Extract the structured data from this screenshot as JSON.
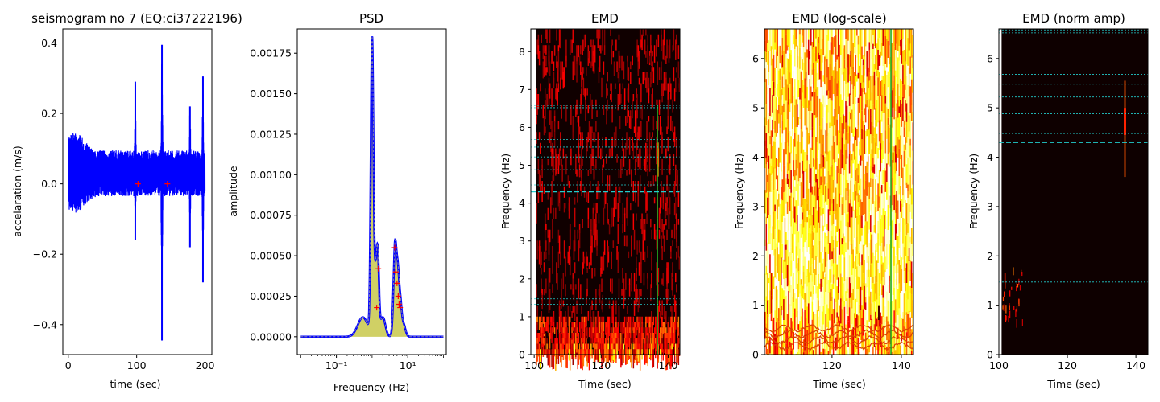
{
  "figure": {
    "background": "#ffffff"
  },
  "chart_data": [
    {
      "id": "seismogram",
      "type": "line",
      "title": "seismogram no 7 (EQ:ci37222196)",
      "xlabel": "time (sec)",
      "ylabel": "accelaration (m/s)",
      "xlim": [
        -8,
        210
      ],
      "ylim": [
        -0.485,
        0.44
      ],
      "xticks": [
        0,
        100,
        200
      ],
      "yticks": [
        -0.4,
        -0.2,
        0.0,
        0.2,
        0.4
      ],
      "ytick_labels": [
        "−0.4",
        "−0.2",
        "0.0",
        "0.2",
        "0.4"
      ],
      "line_color": "#0000ff",
      "marker_color": "#ff0000",
      "markers": [
        {
          "x": 102,
          "y": 0.0
        },
        {
          "x": 145,
          "y": 0.0
        }
      ],
      "spikes": [
        {
          "x": 98,
          "max": 0.29,
          "min": -0.16
        },
        {
          "x": 137,
          "max": 0.395,
          "min": -0.445
        },
        {
          "x": 178,
          "max": 0.22,
          "min": -0.18
        },
        {
          "x": 197,
          "max": 0.305,
          "min": -0.28
        }
      ]
    },
    {
      "id": "psd",
      "type": "line",
      "title": "PSD",
      "xlabel": "Frequency (Hz)",
      "ylabel": "amplitude",
      "xscale": "log",
      "xlim": [
        0.008,
        120
      ],
      "ylim": [
        -0.00011,
        0.0019
      ],
      "xticks": [
        0.1,
        10
      ],
      "xtick_labels": [
        "10⁻¹",
        "10¹"
      ],
      "yticks": [
        0.0,
        0.00025,
        0.0005,
        0.00075,
        0.001,
        0.00125,
        0.0015,
        0.00175
      ],
      "ytick_labels": [
        "0.00000",
        "0.00025",
        "0.00050",
        "0.00075",
        "0.00100",
        "0.00125",
        "0.00150",
        "0.00175"
      ],
      "line_color": "#0000ff",
      "fill_color": "#c8c84a",
      "marker_color": "#ff0000",
      "peaks": [
        {
          "f": 0.55,
          "a": 0.00012,
          "w": 0.2
        },
        {
          "f": 1.0,
          "a": 0.00178,
          "w": 0.05
        },
        {
          "f": 1.25,
          "a": 0.00035,
          "w": 0.07
        },
        {
          "f": 1.45,
          "a": 0.00038,
          "w": 0.05
        },
        {
          "f": 2.0,
          "a": 0.00012,
          "w": 0.1
        },
        {
          "f": 4.4,
          "a": 0.00057,
          "w": 0.06
        },
        {
          "f": 5.3,
          "a": 0.00033,
          "w": 0.05
        },
        {
          "f": 6.2,
          "a": 0.00018,
          "w": 0.05
        },
        {
          "f": 7.5,
          "a": 8e-05,
          "w": 0.08
        }
      ],
      "markers": [
        {
          "f": 1.5,
          "a": 0.00042
        },
        {
          "f": 1.35,
          "a": 0.00018
        },
        {
          "f": 4.3,
          "a": 0.00055
        },
        {
          "f": 4.6,
          "a": 0.0004
        },
        {
          "f": 5.0,
          "a": 0.00033
        },
        {
          "f": 5.4,
          "a": 0.00025
        },
        {
          "f": 5.7,
          "a": 0.0002
        },
        {
          "f": 6.1,
          "a": 0.00018
        }
      ]
    },
    {
      "id": "emd",
      "type": "heatmap",
      "title": "EMD",
      "xlabel": "Time (sec)",
      "ylabel": "Frequency (Hz)",
      "xlim": [
        99,
        143.5
      ],
      "ylim": [
        0,
        8.6
      ],
      "xticks": [
        100,
        120,
        140
      ],
      "yticks": [
        0,
        1,
        2,
        3,
        4,
        5,
        6,
        7,
        8
      ],
      "colormap": "hot",
      "data_xrange": [
        100.5,
        143.5
      ],
      "hlines_thin": [
        1.33,
        1.47,
        4.48,
        4.88,
        5.22,
        5.48,
        5.68,
        6.52,
        6.58
      ],
      "hline_bold": 4.3,
      "vline_x": 136.8,
      "line_colors": {
        "cyan": "#22cccc",
        "green": "#22aa22"
      }
    },
    {
      "id": "emd_log",
      "type": "heatmap",
      "title": "EMD (log-scale)",
      "xlabel": "Time (sec)",
      "ylabel": "Frequency (Hz)",
      "xlim": [
        100.5,
        143.5
      ],
      "ylim": [
        0,
        6.6
      ],
      "xticks": [
        120,
        140
      ],
      "yticks": [
        0,
        1,
        2,
        3,
        4,
        5,
        6
      ],
      "colormap": "hot",
      "vline_x": 137.0,
      "line_colors": {
        "green": "#22aa22"
      }
    },
    {
      "id": "emd_norm",
      "type": "heatmap",
      "title": "EMD (norm amp)",
      "xlabel": "Time (sec)",
      "ylabel": "Frequency (Hz)",
      "xlim": [
        100,
        143.5
      ],
      "ylim": [
        0,
        6.6
      ],
      "xticks": [
        100,
        120,
        140
      ],
      "yticks": [
        0,
        1,
        2,
        3,
        4,
        5,
        6
      ],
      "colormap": "hot",
      "hlines_thin": [
        1.33,
        1.47,
        4.48,
        4.88,
        5.22,
        5.48,
        5.68,
        6.52,
        6.58
      ],
      "hline_bold": 4.3,
      "vline_x": 136.8,
      "line_colors": {
        "cyan": "#22cccc",
        "green": "#22aa22"
      }
    }
  ]
}
